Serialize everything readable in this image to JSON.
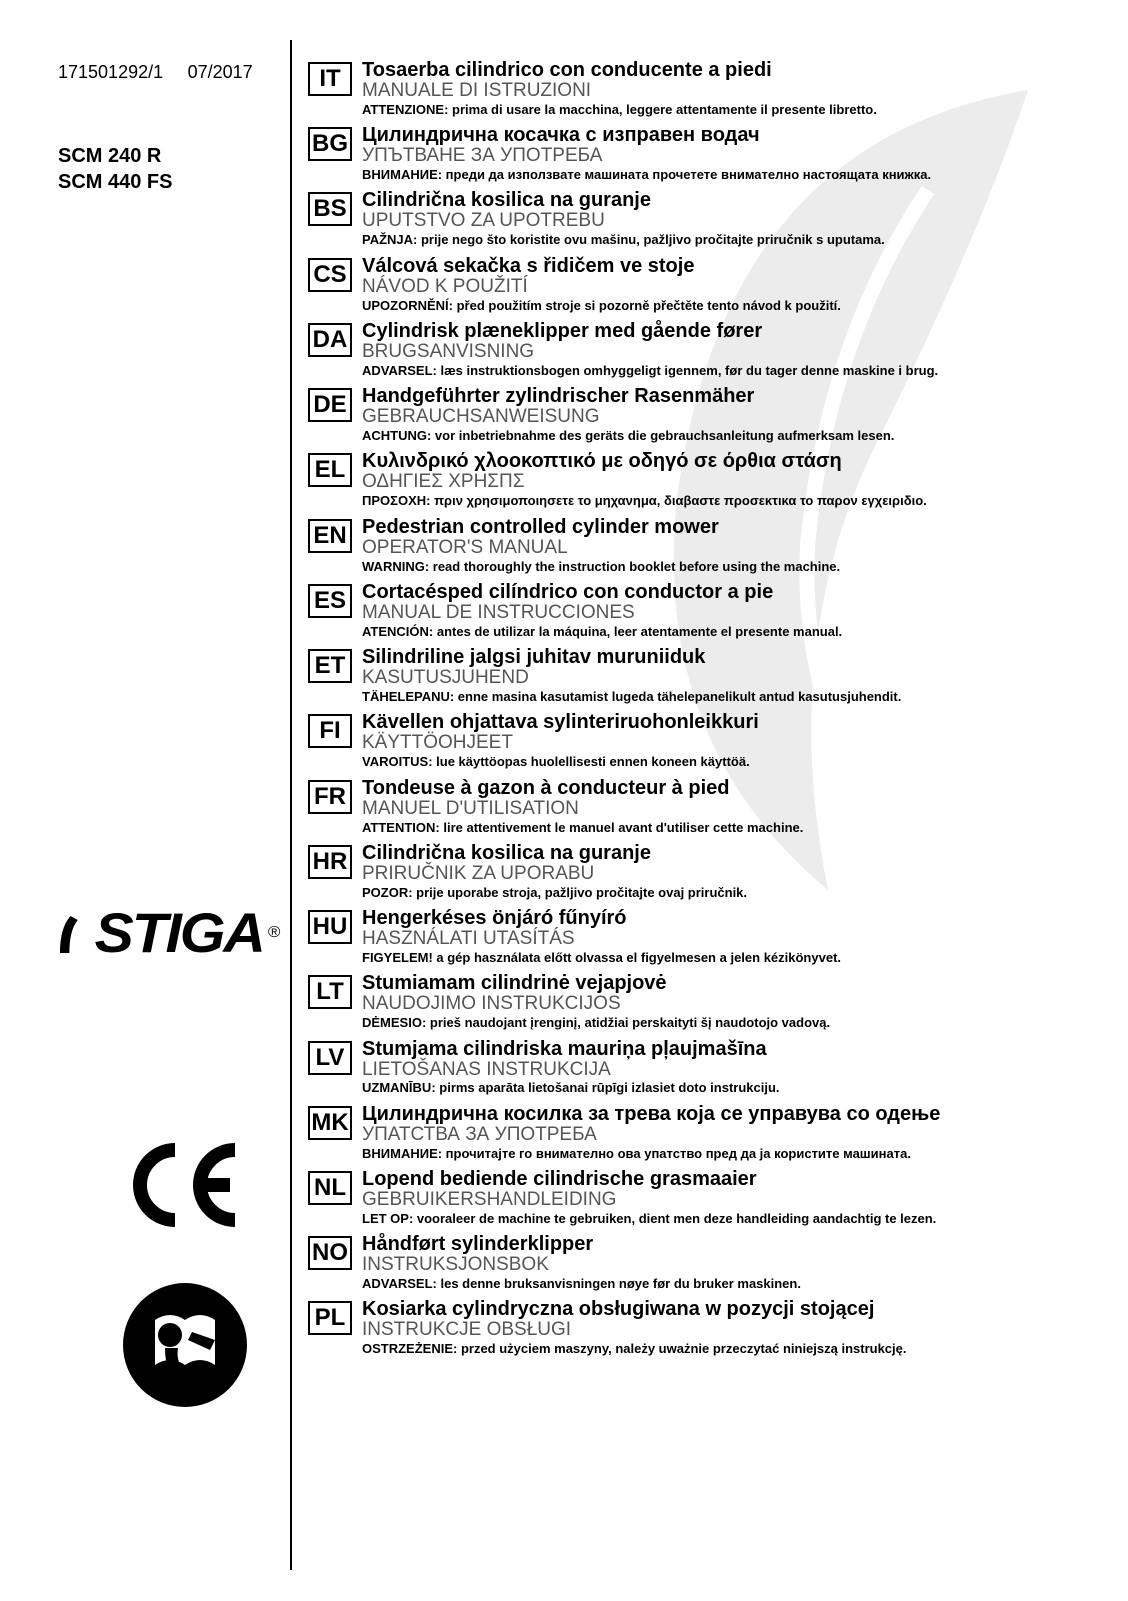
{
  "doc_number": "171501292/1",
  "doc_date": "07/2017",
  "models": [
    "SCM 240 R",
    "SCM 440 FS"
  ],
  "brand": "STIGA",
  "ce": "CE",
  "languages": [
    {
      "code": "IT",
      "title": "Tosaerba cilindrico con conducente a piedi",
      "sub": "MANUALE DI ISTRUZIONI",
      "warn": "ATTENZIONE: prima di usare la macchina, leggere attentamente il presente libretto."
    },
    {
      "code": "BG",
      "title": "Цилиндрична косачка с изправен водач",
      "sub": "УПЪТВАНЕ ЗА УПОТРЕБА",
      "warn": "ВНИМАНИЕ: преди да използвате машината прочетете внимателно настоящата книжка."
    },
    {
      "code": "BS",
      "title": "Cilindrična kosilica na guranje",
      "sub": "UPUTSTVO ZA UPOTREBU",
      "warn": "PAŽNJA: prije nego što koristite ovu mašinu, pažljivo pročitajte priručnik s uputama."
    },
    {
      "code": "CS",
      "title": "Válcová sekačka s řidičem ve stoje",
      "sub": "NÁVOD K POUŽITÍ",
      "warn": "UPOZORNĚNÍ: před použitím stroje si pozorně přečtěte tento návod k použití."
    },
    {
      "code": "DA",
      "title": "Cylindrisk plæneklipper med gående fører",
      "sub": "BRUGSANVISNING",
      "warn": "ADVARSEL: læs instruktionsbogen omhyggeligt igennem, før du tager denne maskine i brug."
    },
    {
      "code": "DE",
      "title": "Handgeführter zylindrischer Rasenmäher",
      "sub": "GEBRAUCHSANWEISUNG",
      "warn": "ACHTUNG: vor inbetriebnahme des geräts die gebrauchsanleitung aufmerksam lesen."
    },
    {
      "code": "EL",
      "title": "Κυλινδρικό χλοοκοπτικό με οδηγό σε όρθια στάση",
      "sub": "ΟΔΗΓΙΕΣ ΧΡΗΣΠΣ",
      "warn": "ΠΡΟΣΟΧΗ: πριν χρησιμοποιησετε το μηχανημα, διαβαστε προσεκτικα το παρον εγχειριδιο."
    },
    {
      "code": "EN",
      "title": "Pedestrian controlled cylinder mower",
      "sub": "OPERATOR'S MANUAL",
      "warn": "WARNING: read thoroughly the instruction booklet before using the machine."
    },
    {
      "code": "ES",
      "title": "Cortacésped cilíndrico con conductor a pie",
      "sub": "MANUAL DE INSTRUCCIONES",
      "warn": "ATENCIÓN: antes de utilizar la máquina, leer atentamente el presente manual."
    },
    {
      "code": "ET",
      "title": "Silindriline jalgsi juhitav muruniiduk",
      "sub": "KASUTUSJUHEND",
      "warn": "TÄHELEPANU: enne masina kasutamist lugeda tähelepanelikult antud kasutusjuhendit."
    },
    {
      "code": "FI",
      "title": "Kävellen ohjattava sylinteriruohonleikkuri",
      "sub": "KÄYTTÖOHJEET",
      "warn": "VAROITUS: lue käyttöopas huolellisesti ennen koneen käyttöä."
    },
    {
      "code": "FR",
      "title": "Tondeuse à gazon à conducteur à pied",
      "sub": "MANUEL D'UTILISATION",
      "warn": "ATTENTION: lire attentivement le manuel avant d'utiliser cette machine."
    },
    {
      "code": "HR",
      "title": "Cilindrična kosilica na guranje",
      "sub": "PRIRUČNIK ZA UPORABU",
      "warn": "POZOR: prije uporabe stroja, pažljivo pročitajte ovaj priručnik."
    },
    {
      "code": "HU",
      "title": "Hengerkéses önjáró fűnyíró",
      "sub": "HASZNÁLATI UTASÍTÁS",
      "warn": "FIGYELEM! a gép használata előtt olvassa el figyelmesen a jelen kézikönyvet."
    },
    {
      "code": "LT",
      "title": "Stumiamam cilindrinė vejapjovė",
      "sub": "NAUDOJIMO INSTRUKCIJOS",
      "warn": "DĖMESIO: prieš naudojant įrenginį, atidžiai perskaityti šį naudotojo vadovą."
    },
    {
      "code": "LV",
      "title": "Stumjama cilindriska mauriņa pļaujmašīna",
      "sub": "LIETOŠANAS INSTRUKCIJA",
      "warn": "UZMANĪBU: pirms aparāta lietošanai rūpīgi izlasiet doto instrukciju."
    },
    {
      "code": "MK",
      "title": "Цилиндрична косилка за трева која се управува со одење",
      "sub": "УПАТСТВА ЗА УПОТРЕБА",
      "warn": "ВНИМАНИЕ: прочитајте го внимателно ова упатство пред да ја користите машината."
    },
    {
      "code": "NL",
      "title": "Lopend bediende cilindrische grasmaaier",
      "sub": "GEBRUIKERSHANDLEIDING",
      "warn": "LET OP: vooraleer de machine te gebruiken, dient men deze handleiding aandachtig te lezen."
    },
    {
      "code": "NO",
      "title": "Håndført sylinderklipper",
      "sub": "INSTRUKSJONSBOK",
      "warn": "ADVARSEL: les denne bruksanvisningen nøye før du bruker maskinen."
    },
    {
      "code": "PL",
      "title": "Kosiarka cylindryczna obsługiwana w pozycji stojącej",
      "sub": "INSTRUKCJE OBSŁUGI",
      "warn": "OSTRZEŻENIE: przed użyciem maszyny, należy uważnie przeczytać niniejszą instrukcję."
    }
  ]
}
